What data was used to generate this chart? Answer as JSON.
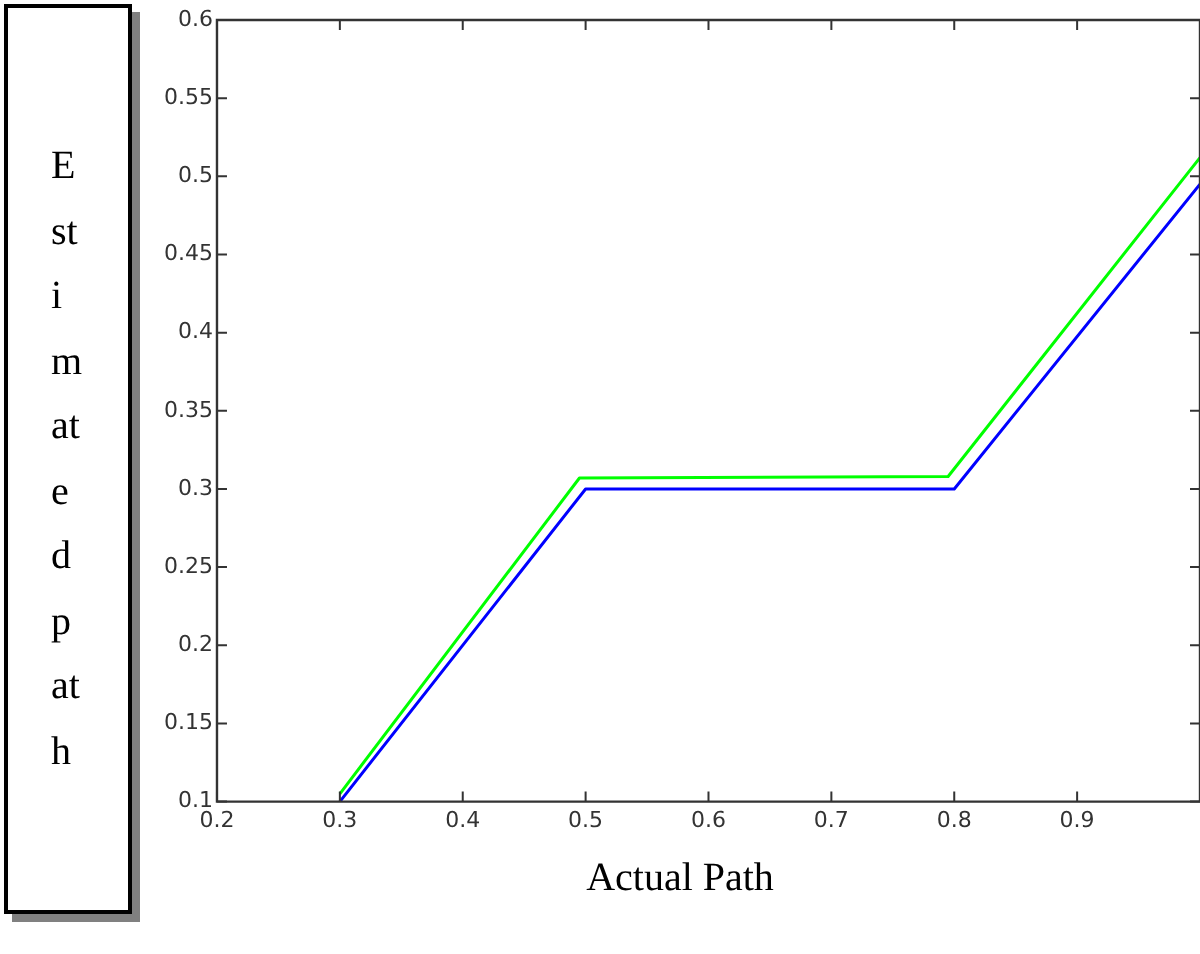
{
  "chart_data": {
    "type": "line",
    "xlabel": "Actual Path",
    "ylabel": "Estimatedpath",
    "xlim": [
      0.2,
      1.0
    ],
    "xticks": [
      0.2,
      0.3,
      0.4,
      0.5,
      0.6,
      0.7,
      0.8,
      0.9
    ],
    "ylim": [
      0.1,
      0.6
    ],
    "yticks": [
      0.1,
      0.15,
      0.2,
      0.25,
      0.3,
      0.35,
      0.4,
      0.45,
      0.5,
      0.55,
      0.6
    ],
    "grid": false,
    "legend": false,
    "marker": "none",
    "line_style": "solid",
    "series": [
      {
        "color": "#00ff00",
        "x": [
          0.3,
          0.495,
          0.795,
          1.0
        ],
        "values": [
          0.105,
          0.307,
          0.308,
          0.512
        ]
      },
      {
        "color": "#0000ff",
        "x": [
          0.3,
          0.5,
          0.8,
          1.0
        ],
        "values": [
          0.1,
          0.3,
          0.3,
          0.495
        ]
      }
    ]
  }
}
